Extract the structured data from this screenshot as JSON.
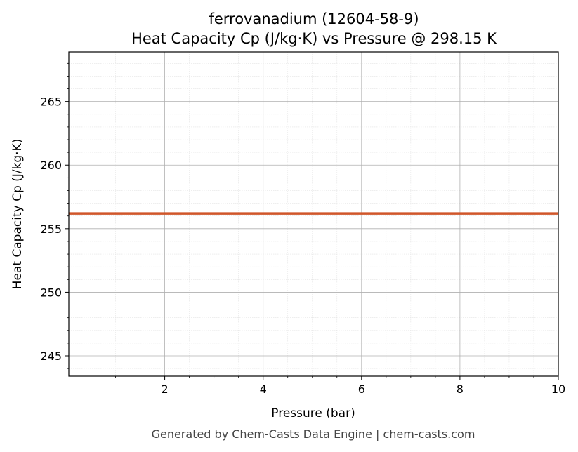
{
  "chart_data": {
    "type": "line",
    "title": "ferrovanadium (12604-58-9)",
    "subtitle": "Heat Capacity Cp (J/kg·K) vs Pressure @ 298.15 K",
    "xlabel": "Pressure (bar)",
    "ylabel": "Heat Capacity Cp (J/kg·K)",
    "xlim": [
      0.05,
      10
    ],
    "ylim": [
      243.4,
      268.9
    ],
    "x_ticks": [
      2,
      4,
      6,
      8,
      10
    ],
    "y_ticks": [
      245,
      250,
      255,
      260,
      265
    ],
    "grid": true,
    "series": [
      {
        "color": "#d0562a",
        "x": [
          0.05,
          1,
          2,
          3,
          4,
          5,
          6,
          7,
          8,
          9,
          10
        ],
        "y": [
          256.2,
          256.2,
          256.2,
          256.2,
          256.2,
          256.2,
          256.2,
          256.2,
          256.2,
          256.2,
          256.2
        ]
      }
    ]
  },
  "footer": "Generated by Chem-Casts Data Engine | chem-casts.com"
}
